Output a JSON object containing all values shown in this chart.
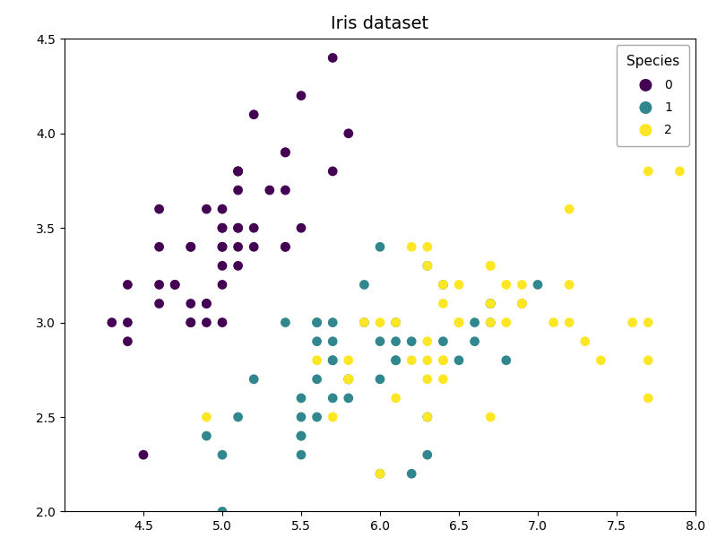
{
  "title": "Iris dataset",
  "xlim": [
    4.0,
    8.0
  ],
  "ylim": [
    2.0,
    4.5
  ],
  "xticks": [
    4.5,
    5.0,
    5.5,
    6.0,
    6.5,
    7.0,
    7.5,
    8.0
  ],
  "yticks": [
    2.0,
    2.5,
    3.0,
    3.5,
    4.0,
    4.5
  ],
  "legend_title": "Species",
  "species_labels": [
    "0",
    "1",
    "2"
  ],
  "colors": [
    "#440154",
    "#31878e",
    "#fde725"
  ],
  "marker_size": 60,
  "sepal_length": [
    5.1,
    4.9,
    4.7,
    4.6,
    5.0,
    5.4,
    4.6,
    5.0,
    4.4,
    4.9,
    5.4,
    4.8,
    4.8,
    4.3,
    5.8,
    5.7,
    5.4,
    5.1,
    5.7,
    5.1,
    5.4,
    5.1,
    4.6,
    5.1,
    4.8,
    5.0,
    5.0,
    5.2,
    5.2,
    4.7,
    4.8,
    5.4,
    5.2,
    5.5,
    4.9,
    5.0,
    5.5,
    4.9,
    4.4,
    5.1,
    5.0,
    4.5,
    4.4,
    5.0,
    5.1,
    4.8,
    5.1,
    4.6,
    5.3,
    5.0,
    7.0,
    6.4,
    6.9,
    5.5,
    6.5,
    5.7,
    6.3,
    4.9,
    6.6,
    5.2,
    5.0,
    5.9,
    6.0,
    6.1,
    5.6,
    6.7,
    5.6,
    5.8,
    6.2,
    5.6,
    5.9,
    6.1,
    6.3,
    6.1,
    6.4,
    6.6,
    6.8,
    6.7,
    6.0,
    5.7,
    5.5,
    5.5,
    5.8,
    6.0,
    5.4,
    6.0,
    6.7,
    6.3,
    5.6,
    5.5,
    5.5,
    6.1,
    5.8,
    5.0,
    5.6,
    5.7,
    5.7,
    6.2,
    5.1,
    5.7,
    6.3,
    5.8,
    7.1,
    6.3,
    6.5,
    7.6,
    4.9,
    7.3,
    6.7,
    7.2,
    6.5,
    6.4,
    6.8,
    5.7,
    5.8,
    6.4,
    6.5,
    7.7,
    7.7,
    6.0,
    6.9,
    5.6,
    7.7,
    6.3,
    6.7,
    7.2,
    6.2,
    6.1,
    6.4,
    7.2,
    7.4,
    7.9,
    6.4,
    6.3,
    6.1,
    7.7,
    6.3,
    6.4,
    6.0,
    6.9,
    6.7,
    6.9,
    5.8,
    6.8,
    6.7,
    6.7,
    6.3,
    6.5,
    6.2,
    5.9
  ],
  "sepal_width": [
    3.5,
    3.0,
    3.2,
    3.1,
    3.6,
    3.9,
    3.4,
    3.4,
    2.9,
    3.1,
    3.7,
    3.4,
    3.0,
    3.0,
    4.0,
    4.4,
    3.9,
    3.5,
    3.8,
    3.8,
    3.4,
    3.7,
    3.6,
    3.3,
    3.4,
    3.0,
    3.4,
    3.5,
    3.4,
    3.2,
    3.1,
    3.4,
    4.1,
    4.2,
    3.1,
    3.2,
    3.5,
    3.6,
    3.0,
    3.4,
    3.5,
    2.3,
    3.2,
    3.5,
    3.8,
    3.0,
    3.8,
    3.2,
    3.7,
    3.3,
    3.2,
    3.2,
    3.1,
    2.3,
    2.8,
    2.8,
    3.3,
    2.4,
    2.9,
    2.7,
    2.0,
    3.0,
    2.2,
    2.9,
    2.9,
    3.1,
    3.0,
    2.7,
    2.2,
    2.5,
    3.2,
    2.8,
    2.5,
    2.8,
    2.9,
    3.0,
    2.8,
    3.0,
    2.9,
    2.6,
    2.4,
    2.4,
    2.7,
    2.7,
    3.0,
    3.4,
    3.1,
    2.3,
    3.0,
    2.5,
    2.6,
    3.0,
    2.6,
    2.3,
    2.7,
    3.0,
    2.9,
    2.9,
    2.5,
    2.8,
    3.3,
    2.7,
    3.0,
    2.9,
    3.0,
    3.0,
    2.5,
    2.9,
    2.5,
    3.6,
    3.2,
    2.7,
    3.0,
    2.5,
    2.8,
    3.2,
    3.0,
    3.8,
    2.6,
    2.2,
    3.2,
    2.8,
    2.8,
    2.7,
    3.3,
    3.2,
    2.8,
    3.0,
    2.8,
    3.0,
    2.8,
    3.8,
    2.8,
    2.8,
    2.6,
    3.0,
    3.4,
    3.1,
    3.0,
    3.1,
    3.1,
    3.1,
    2.7,
    3.2,
    3.3,
    3.0,
    2.5,
    3.0,
    3.4,
    3.0
  ],
  "species": [
    0,
    0,
    0,
    0,
    0,
    0,
    0,
    0,
    0,
    0,
    0,
    0,
    0,
    0,
    0,
    0,
    0,
    0,
    0,
    0,
    0,
    0,
    0,
    0,
    0,
    0,
    0,
    0,
    0,
    0,
    0,
    0,
    0,
    0,
    0,
    0,
    0,
    0,
    0,
    0,
    0,
    0,
    0,
    0,
    0,
    0,
    0,
    0,
    0,
    0,
    1,
    1,
    1,
    1,
    1,
    1,
    1,
    1,
    1,
    1,
    1,
    1,
    1,
    1,
    1,
    1,
    1,
    1,
    1,
    1,
    1,
    1,
    1,
    1,
    1,
    1,
    1,
    1,
    1,
    1,
    1,
    1,
    1,
    1,
    1,
    1,
    1,
    1,
    1,
    1,
    1,
    1,
    1,
    1,
    1,
    1,
    1,
    1,
    1,
    1,
    2,
    2,
    2,
    2,
    2,
    2,
    2,
    2,
    2,
    2,
    2,
    2,
    2,
    2,
    2,
    2,
    2,
    2,
    2,
    2,
    2,
    2,
    2,
    2,
    2,
    2,
    2,
    2,
    2,
    2,
    2,
    2,
    2,
    2,
    2,
    2,
    2,
    2,
    2,
    2,
    2,
    2,
    2,
    2,
    2,
    2,
    2,
    2,
    2,
    2
  ],
  "figsize": [
    8.0,
    6.2
  ],
  "dpi": 100
}
